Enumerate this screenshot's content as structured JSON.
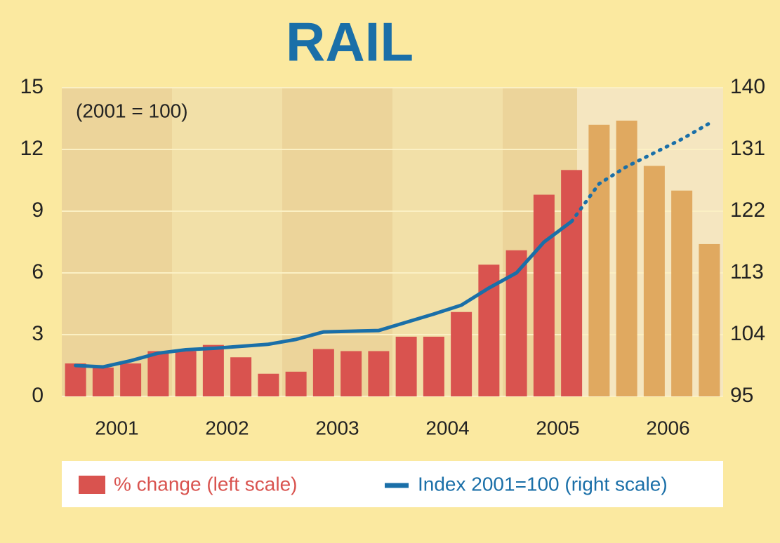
{
  "chart_data": {
    "type": "bar_line",
    "title": "RAIL",
    "annotation": "(2001 = 100)",
    "groups": [
      "2001",
      "2002",
      "2003",
      "2004",
      "2005",
      "2006"
    ],
    "categories": [
      null,
      null,
      null,
      null,
      null,
      null,
      null,
      null,
      null,
      null,
      null,
      null,
      null,
      null,
      null,
      null,
      null,
      null,
      null,
      null,
      null,
      null,
      null,
      null
    ],
    "series": [
      {
        "name": "% change (left scale)",
        "color": "#d9534f",
        "values": [
          1.6,
          1.4,
          1.6,
          2.2,
          2.2,
          2.5,
          1.9,
          1.1,
          1.2,
          2.3,
          2.2,
          2.2,
          2.9,
          2.9,
          4.1,
          6.4,
          7.1,
          9.8,
          11.0,
          13.2,
          13.4,
          11.2,
          10.0,
          7.4
        ],
        "colors": [
          "#d9534f",
          "#d9534f",
          "#d9534f",
          "#d9534f",
          "#d9534f",
          "#d9534f",
          "#d9534f",
          "#d9534f",
          "#d9534f",
          "#d9534f",
          "#d9534f",
          "#d9534f",
          "#d9534f",
          "#d9534f",
          "#d9534f",
          "#d9534f",
          "#d9534f",
          "#d9534f",
          "#d9534f",
          "#e0a960",
          "#e0a960",
          "#e0a960",
          "#e0a960",
          "#e0a960"
        ]
      },
      {
        "name": "Index 2001=100 (right scale)",
        "color": "#1a6fa8",
        "axis": "y2",
        "dotted_from": 18,
        "values": [
          99.5,
          99.3,
          100.2,
          101.3,
          101.8,
          102.0,
          102.3,
          102.6,
          103.3,
          104.4,
          104.5,
          104.6,
          105.8,
          107.0,
          108.3,
          110.8,
          113.0,
          117.5,
          120.5,
          126.0,
          128.5,
          130.5,
          132.5,
          134.8
        ]
      }
    ],
    "ylim": [
      0,
      15
    ],
    "yticks": [
      0,
      3,
      6,
      9,
      12,
      15
    ],
    "y2lim": [
      95,
      140
    ],
    "y2ticks": [
      95,
      104,
      113,
      122,
      131,
      140
    ],
    "grid": true
  }
}
